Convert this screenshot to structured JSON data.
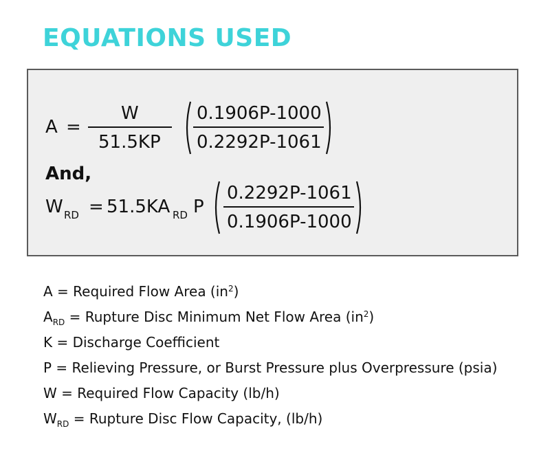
{
  "title": "EQUATIONS USED",
  "equation1": {
    "lhs": "A",
    "equals": "=",
    "frac1_num": "W",
    "frac1_den": "51.5KP",
    "frac2_num": "0.1906P-1000",
    "frac2_den": "0.2292P-1061"
  },
  "connector": "And,",
  "equation2": {
    "lhs": "W",
    "lhs_sub": "RD",
    "equals": "=",
    "coef": "51.5KA",
    "coef_sub": "RD",
    "p": "P",
    "frac_num": "0.2292P-1061",
    "frac_den": "0.1906P-1000"
  },
  "definitions": [
    {
      "symbol": "A",
      "sub": "",
      "text": " = Required Flow Area (in",
      "sup": "2",
      "tail": ")"
    },
    {
      "symbol": "A",
      "sub": "RD",
      "text": " = Rupture Disc Minimum Net Flow Area (in",
      "sup": "2",
      "tail": ")"
    },
    {
      "symbol": "K",
      "sub": "",
      "text": " = Discharge Coefficient",
      "sup": "",
      "tail": ""
    },
    {
      "symbol": "P",
      "sub": "",
      "text": " = Relieving Pressure, or Burst Pressure plus Overpressure (psia)",
      "sup": "",
      "tail": ""
    },
    {
      "symbol": "W",
      "sub": "",
      "text": " = Required Flow Capacity (lb/h)",
      "sup": "",
      "tail": ""
    },
    {
      "symbol": "W",
      "sub": "RD",
      "text": " = Rupture Disc Flow Capacity, (lb/h)",
      "sup": "",
      "tail": ""
    }
  ],
  "colors": {
    "title": "#3ed3d9",
    "box_bg": "#efefef",
    "box_border": "#5a5a5a",
    "text": "#111111"
  }
}
